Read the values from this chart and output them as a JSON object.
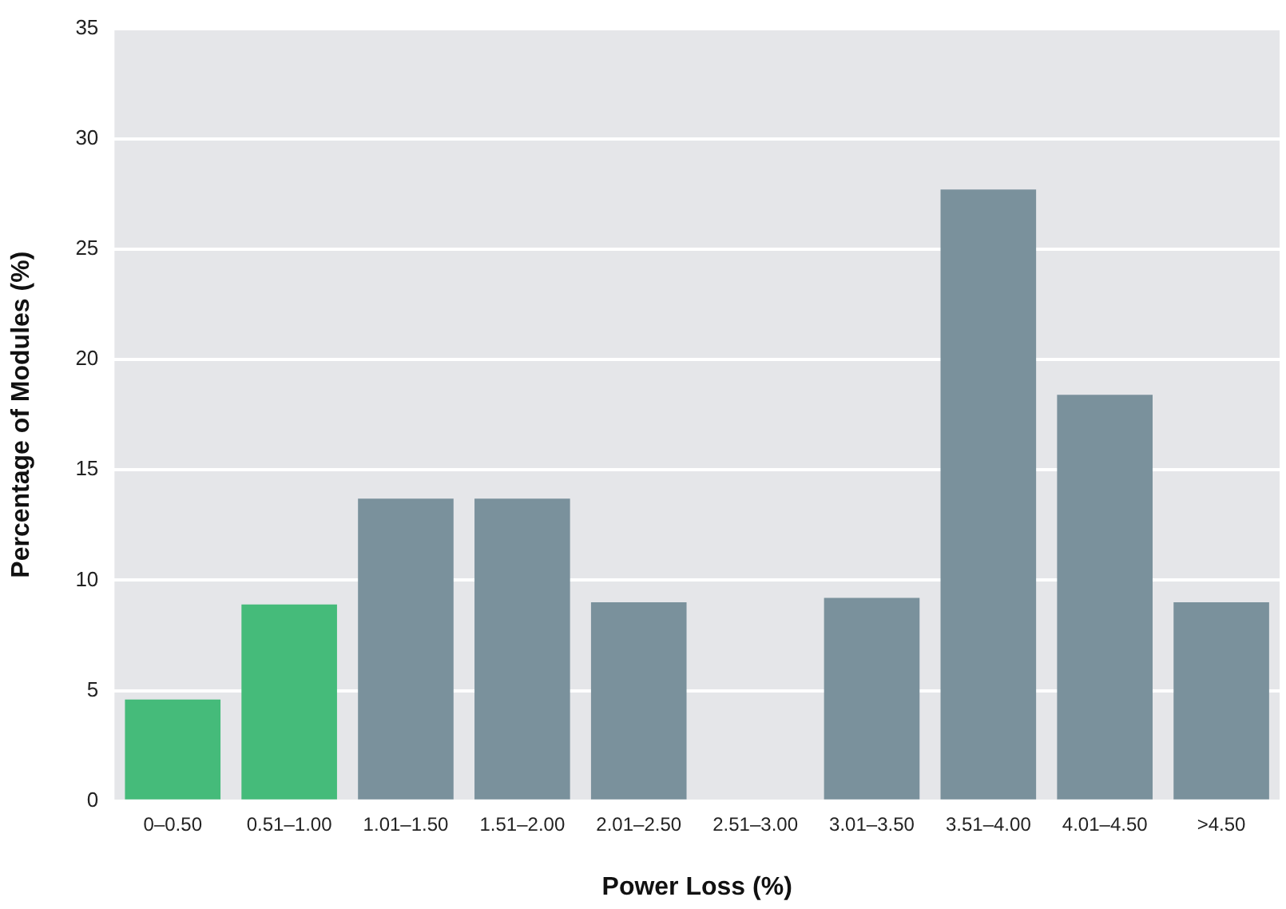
{
  "chart_data": {
    "type": "bar",
    "xlabel": "Power Loss (%)",
    "ylabel": "Percentage of Modules (%)",
    "categories": [
      "0–0.50",
      "0.51–1.00",
      "1.01–1.50",
      "1.51–2.00",
      "2.01–2.50",
      "2.51–3.00",
      "3.01–3.50",
      "3.51–4.00",
      "4.01–4.50",
      ">4.50"
    ],
    "values": [
      4.6,
      8.9,
      13.7,
      13.7,
      9.0,
      0,
      9.2,
      27.7,
      18.4,
      9.0
    ],
    "colors": [
      "#45bb7a",
      "#45bb7a",
      "#7a919c",
      "#7a919c",
      "#7a919c",
      "#7a919c",
      "#7a919c",
      "#7a919c",
      "#7a919c",
      "#7a919c"
    ],
    "ylim": [
      0,
      35
    ],
    "yticks": [
      0,
      5,
      10,
      15,
      20,
      25,
      30,
      35
    ],
    "grid": "y",
    "legend": false
  }
}
